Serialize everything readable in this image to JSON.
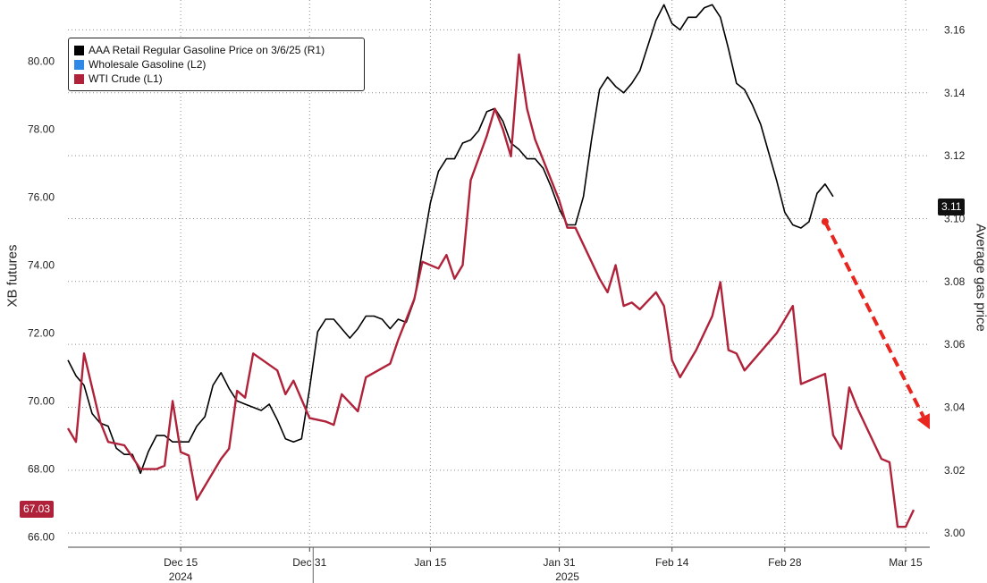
{
  "chart_data": {
    "type": "line",
    "title": "",
    "ylabel_left": "XB futures",
    "ylabel_right": "Average gas price",
    "y_left": {
      "ticks": [
        "66.00",
        "68.00",
        "70.00",
        "72.00",
        "74.00",
        "76.00",
        "78.00",
        "80.00"
      ],
      "lim": [
        65.7,
        81.8
      ]
    },
    "y_right": {
      "ticks": [
        "3.00",
        "3.02",
        "3.04",
        "3.06",
        "3.08",
        "3.10",
        "3.12",
        "3.14",
        "3.16"
      ],
      "lim": [
        2.9955,
        3.1695
      ]
    },
    "x_ticks": [
      {
        "label": "Dec 15",
        "date": "2024-12-15"
      },
      {
        "label": "Dec 31",
        "date": "2024-12-31"
      },
      {
        "label": "Jan 15",
        "date": "2025-01-15"
      },
      {
        "label": "Jan 31",
        "date": "2025-01-31"
      },
      {
        "label": "Feb 14",
        "date": "2025-02-14"
      },
      {
        "label": "Feb 28",
        "date": "2025-02-28"
      },
      {
        "label": "Mar 15",
        "date": "2025-03-15"
      }
    ],
    "x_year_labels": [
      {
        "label": "2024",
        "date": "2024-12-15"
      },
      {
        "label": "2025",
        "date": "2025-02-01"
      }
    ],
    "x_range": [
      "2024-12-01",
      "2025-03-18"
    ],
    "legend_position": "top-left",
    "grid": true,
    "series": [
      {
        "name": "AAA Retail Regular Gasoline Price on 3/6/25 (R1)",
        "color": "#000000",
        "axis": "right",
        "points": [
          [
            "2024-12-01",
            3.055
          ],
          [
            "2024-12-02",
            3.05
          ],
          [
            "2024-12-03",
            3.047
          ],
          [
            "2024-12-04",
            3.038
          ],
          [
            "2024-12-05",
            3.035
          ],
          [
            "2024-12-06",
            3.034
          ],
          [
            "2024-12-07",
            3.027
          ],
          [
            "2024-12-08",
            3.025
          ],
          [
            "2024-12-09",
            3.025
          ],
          [
            "2024-12-10",
            3.019
          ],
          [
            "2024-12-11",
            3.026
          ],
          [
            "2024-12-12",
            3.031
          ],
          [
            "2024-12-13",
            3.031
          ],
          [
            "2024-12-14",
            3.029
          ],
          [
            "2024-12-15",
            3.029
          ],
          [
            "2024-12-16",
            3.029
          ],
          [
            "2024-12-17",
            3.034
          ],
          [
            "2024-12-18",
            3.037
          ],
          [
            "2024-12-19",
            3.047
          ],
          [
            "2024-12-20",
            3.051
          ],
          [
            "2024-12-21",
            3.046
          ],
          [
            "2024-12-22",
            3.042
          ],
          [
            "2024-12-23",
            3.041
          ],
          [
            "2024-12-24",
            3.04
          ],
          [
            "2024-12-25",
            3.039
          ],
          [
            "2024-12-26",
            3.041
          ],
          [
            "2024-12-27",
            3.036
          ],
          [
            "2024-12-28",
            3.03
          ],
          [
            "2024-12-29",
            3.029
          ],
          [
            "2024-12-30",
            3.03
          ],
          [
            "2024-12-31",
            3.046
          ],
          [
            "2025-01-01",
            3.064
          ],
          [
            "2025-01-02",
            3.068
          ],
          [
            "2025-01-03",
            3.068
          ],
          [
            "2025-01-04",
            3.065
          ],
          [
            "2025-01-05",
            3.062
          ],
          [
            "2025-01-06",
            3.065
          ],
          [
            "2025-01-07",
            3.069
          ],
          [
            "2025-01-08",
            3.069
          ],
          [
            "2025-01-09",
            3.068
          ],
          [
            "2025-01-10",
            3.065
          ],
          [
            "2025-01-11",
            3.068
          ],
          [
            "2025-01-12",
            3.067
          ],
          [
            "2025-01-13",
            3.074
          ],
          [
            "2025-01-14",
            3.09
          ],
          [
            "2025-01-15",
            3.105
          ],
          [
            "2025-01-16",
            3.115
          ],
          [
            "2025-01-17",
            3.119
          ],
          [
            "2025-01-18",
            3.119
          ],
          [
            "2025-01-19",
            3.124
          ],
          [
            "2025-01-20",
            3.125
          ],
          [
            "2025-01-21",
            3.128
          ],
          [
            "2025-01-22",
            3.134
          ],
          [
            "2025-01-23",
            3.135
          ],
          [
            "2025-01-24",
            3.131
          ],
          [
            "2025-01-25",
            3.124
          ],
          [
            "2025-01-26",
            3.122
          ],
          [
            "2025-01-27",
            3.119
          ],
          [
            "2025-01-28",
            3.119
          ],
          [
            "2025-01-29",
            3.116
          ],
          [
            "2025-01-30",
            3.11
          ],
          [
            "2025-01-31",
            3.103
          ],
          [
            "2025-02-01",
            3.098
          ],
          [
            "2025-02-02",
            3.098
          ],
          [
            "2025-02-03",
            3.107
          ],
          [
            "2025-02-04",
            3.125
          ],
          [
            "2025-02-05",
            3.141
          ],
          [
            "2025-02-06",
            3.145
          ],
          [
            "2025-02-07",
            3.142
          ],
          [
            "2025-02-08",
            3.14
          ],
          [
            "2025-02-09",
            3.143
          ],
          [
            "2025-02-10",
            3.147
          ],
          [
            "2025-02-11",
            3.155
          ],
          [
            "2025-02-12",
            3.163
          ],
          [
            "2025-02-13",
            3.168
          ],
          [
            "2025-02-14",
            3.162
          ],
          [
            "2025-02-15",
            3.16
          ],
          [
            "2025-02-16",
            3.164
          ],
          [
            "2025-02-17",
            3.164
          ],
          [
            "2025-02-18",
            3.167
          ],
          [
            "2025-02-19",
            3.168
          ],
          [
            "2025-02-20",
            3.164
          ],
          [
            "2025-02-21",
            3.154
          ],
          [
            "2025-02-22",
            3.143
          ],
          [
            "2025-02-23",
            3.141
          ],
          [
            "2025-02-24",
            3.136
          ],
          [
            "2025-02-25",
            3.13
          ],
          [
            "2025-02-26",
            3.121
          ],
          [
            "2025-02-27",
            3.112
          ],
          [
            "2025-02-28",
            3.102
          ],
          [
            "2025-03-01",
            3.098
          ],
          [
            "2025-03-02",
            3.097
          ],
          [
            "2025-03-03",
            3.099
          ],
          [
            "2025-03-04",
            3.108
          ],
          [
            "2025-03-05",
            3.111
          ],
          [
            "2025-03-06",
            3.107
          ]
        ]
      },
      {
        "name": "Wholesale Gasoline (L2)",
        "color": "#2e8ae6",
        "axis": "left",
        "points": []
      },
      {
        "name": "WTI Crude (L1)",
        "color": "#b0223a",
        "axis": "left",
        "points": [
          [
            "2024-12-01",
            69.2
          ],
          [
            "2024-12-02",
            68.8
          ],
          [
            "2024-12-03",
            71.4
          ],
          [
            "2024-12-05",
            69.4
          ],
          [
            "2024-12-06",
            68.8
          ],
          [
            "2024-12-08",
            68.7
          ],
          [
            "2024-12-10",
            68.0
          ],
          [
            "2024-12-12",
            68.0
          ],
          [
            "2024-12-13",
            68.1
          ],
          [
            "2024-12-14",
            70.0
          ],
          [
            "2024-12-15",
            68.5
          ],
          [
            "2024-12-16",
            68.4
          ],
          [
            "2024-12-17",
            67.1
          ],
          [
            "2024-12-20",
            68.3
          ],
          [
            "2024-12-21",
            68.6
          ],
          [
            "2024-12-22",
            70.3
          ],
          [
            "2024-12-23",
            70.1
          ],
          [
            "2024-12-24",
            71.4
          ],
          [
            "2024-12-27",
            70.9
          ],
          [
            "2024-12-28",
            70.2
          ],
          [
            "2024-12-29",
            70.6
          ],
          [
            "2024-12-31",
            69.5
          ],
          [
            "2025-01-02",
            69.4
          ],
          [
            "2025-01-03",
            69.3
          ],
          [
            "2025-01-04",
            70.2
          ],
          [
            "2025-01-06",
            69.7
          ],
          [
            "2025-01-07",
            70.7
          ],
          [
            "2025-01-10",
            71.1
          ],
          [
            "2025-01-11",
            71.8
          ],
          [
            "2025-01-13",
            73.0
          ],
          [
            "2025-01-14",
            74.1
          ],
          [
            "2025-01-16",
            73.9
          ],
          [
            "2025-01-17",
            74.3
          ],
          [
            "2025-01-18",
            73.6
          ],
          [
            "2025-01-19",
            74.0
          ],
          [
            "2025-01-20",
            76.5
          ],
          [
            "2025-01-22",
            77.8
          ],
          [
            "2025-01-23",
            78.6
          ],
          [
            "2025-01-24",
            78.0
          ],
          [
            "2025-01-25",
            77.2
          ],
          [
            "2025-01-26",
            80.2
          ],
          [
            "2025-01-27",
            78.6
          ],
          [
            "2025-01-28",
            77.7
          ],
          [
            "2025-01-31",
            75.9
          ],
          [
            "2025-02-01",
            75.1
          ],
          [
            "2025-02-02",
            75.1
          ],
          [
            "2025-02-04",
            74.1
          ],
          [
            "2025-02-05",
            73.6
          ],
          [
            "2025-02-06",
            73.2
          ],
          [
            "2025-02-07",
            74.0
          ],
          [
            "2025-02-08",
            72.8
          ],
          [
            "2025-02-09",
            72.9
          ],
          [
            "2025-02-10",
            72.7
          ],
          [
            "2025-02-12",
            73.2
          ],
          [
            "2025-02-13",
            72.8
          ],
          [
            "2025-02-14",
            71.2
          ],
          [
            "2025-02-15",
            70.7
          ],
          [
            "2025-02-17",
            71.5
          ],
          [
            "2025-02-19",
            72.5
          ],
          [
            "2025-02-20",
            73.5
          ],
          [
            "2025-02-21",
            71.5
          ],
          [
            "2025-02-22",
            71.4
          ],
          [
            "2025-02-23",
            70.9
          ],
          [
            "2025-02-27",
            72.0
          ],
          [
            "2025-02-28",
            72.4
          ],
          [
            "2025-03-01",
            72.8
          ],
          [
            "2025-03-02",
            70.5
          ],
          [
            "2025-03-05",
            70.8
          ],
          [
            "2025-03-06",
            69.0
          ],
          [
            "2025-03-07",
            68.6
          ],
          [
            "2025-03-08",
            70.4
          ],
          [
            "2025-03-09",
            69.8
          ],
          [
            "2025-03-12",
            68.3
          ],
          [
            "2025-03-13",
            68.2
          ],
          [
            "2025-03-14",
            66.3
          ],
          [
            "2025-03-15",
            66.3
          ],
          [
            "2025-03-16",
            66.8
          ]
        ]
      }
    ],
    "last_value_labels": [
      {
        "series": "AAA Retail Regular Gasoline Price on 3/6/25 (R1)",
        "text": "3.11",
        "value": 3.11,
        "axis": "right"
      },
      {
        "series": "WTI Crude (L1)",
        "text": "67.03",
        "value": 67.03,
        "axis": "left"
      }
    ],
    "annotations": [
      {
        "type": "dashed-arrow",
        "color": "#e8251e",
        "from": {
          "date": "2025-03-05",
          "value": 3.099
        },
        "to": {
          "date": "2025-03-18",
          "value": 3.033
        }
      }
    ]
  }
}
